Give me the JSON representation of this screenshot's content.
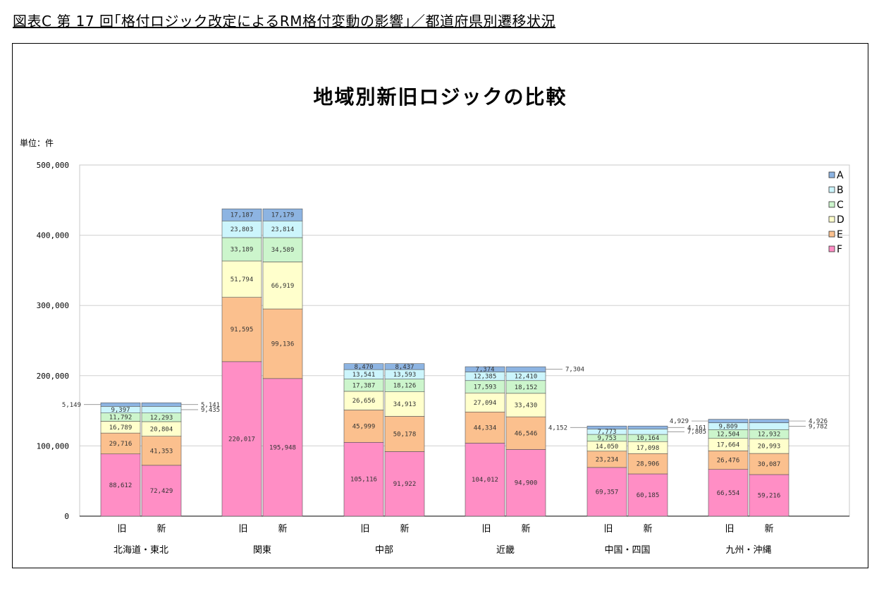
{
  "page": {
    "heading": "図表C 第 17 回｢格付ロジック改定によるRM格付変動の影響｣／都道府県別遷移状況"
  },
  "chart_data": {
    "type": "bar",
    "stacked": true,
    "title": "地域別新旧ロジックの比較",
    "unit_label": "単位：件",
    "ylim": [
      0,
      500000
    ],
    "y_ticks": [
      "0",
      "100,000",
      "200,000",
      "300,000",
      "400,000",
      "500,000"
    ],
    "y_tick_values": [
      0,
      100000,
      200000,
      300000,
      400000,
      500000
    ],
    "grid": true,
    "legend_position": "top-right",
    "series_order_bottom_to_top": [
      "F",
      "E",
      "D",
      "C",
      "B",
      "A"
    ],
    "legend": [
      "A",
      "B",
      "C",
      "D",
      "E",
      "F"
    ],
    "colors": {
      "A": "#8db4e2",
      "B": "#ccf5fc",
      "C": "#ccf5cc",
      "D": "#ffffcc",
      "E": "#fbc08e",
      "F": "#ff8ec5"
    },
    "bar_labels": {
      "old": "旧",
      "new": "新"
    },
    "groups": [
      {
        "name": "北海道・東北",
        "old": {
          "F": 88612,
          "E": 29716,
          "D": 16789,
          "C": 11792,
          "B": 9397,
          "A": 5149
        },
        "new": {
          "F": 72429,
          "E": 41353,
          "D": 20804,
          "C": 12293,
          "B": 9435,
          "A": 5141
        }
      },
      {
        "name": "関東",
        "old": {
          "F": 220017,
          "E": 91595,
          "D": 51794,
          "C": 33189,
          "B": 23803,
          "A": 17187
        },
        "new": {
          "F": 195948,
          "E": 99136,
          "D": 66919,
          "C": 34589,
          "B": 23814,
          "A": 17179
        }
      },
      {
        "name": "中部",
        "old": {
          "F": 105116,
          "E": 45999,
          "D": 26656,
          "C": 17387,
          "B": 13541,
          "A": 8470
        },
        "new": {
          "F": 91922,
          "E": 50178,
          "D": 34913,
          "C": 18126,
          "B": 13593,
          "A": 8437
        }
      },
      {
        "name": "近畿",
        "old": {
          "F": 104012,
          "E": 44334,
          "D": 27094,
          "C": 17593,
          "B": 12385,
          "A": 7374
        },
        "new": {
          "F": 94900,
          "E": 46546,
          "D": 33430,
          "C": 18152,
          "B": 12410,
          "A": 7304
        }
      },
      {
        "name": "中国・四国",
        "old": {
          "F": 69357,
          "E": 23234,
          "D": 14050,
          "C": 9753,
          "B": 7773,
          "A": 4152
        },
        "new": {
          "F": 60185,
          "E": 28906,
          "D": 17098,
          "C": 10164,
          "B": 7805,
          "A": 4161
        }
      },
      {
        "name": "九州・沖縄",
        "old": {
          "F": 66554,
          "E": 26476,
          "D": 17664,
          "C": 12504,
          "B": 9809,
          "A": 4929
        },
        "new": {
          "F": 59216,
          "E": 30087,
          "D": 20993,
          "C": 12932,
          "B": 9782,
          "A": 4926
        }
      }
    ],
    "external_labels": [
      {
        "group": 0,
        "bar": "old",
        "series": "A"
      },
      {
        "group": 0,
        "bar": "new",
        "series": "A"
      },
      {
        "group": 0,
        "bar": "new",
        "series": "B"
      },
      {
        "group": 3,
        "bar": "new",
        "series": "A"
      },
      {
        "group": 4,
        "bar": "old",
        "series": "A"
      },
      {
        "group": 4,
        "bar": "new",
        "series": "A"
      },
      {
        "group": 4,
        "bar": "new",
        "series": "B"
      },
      {
        "group": 5,
        "bar": "old",
        "series": "A"
      },
      {
        "group": 5,
        "bar": "new",
        "series": "A"
      },
      {
        "group": 5,
        "bar": "new",
        "series": "B"
      }
    ]
  }
}
